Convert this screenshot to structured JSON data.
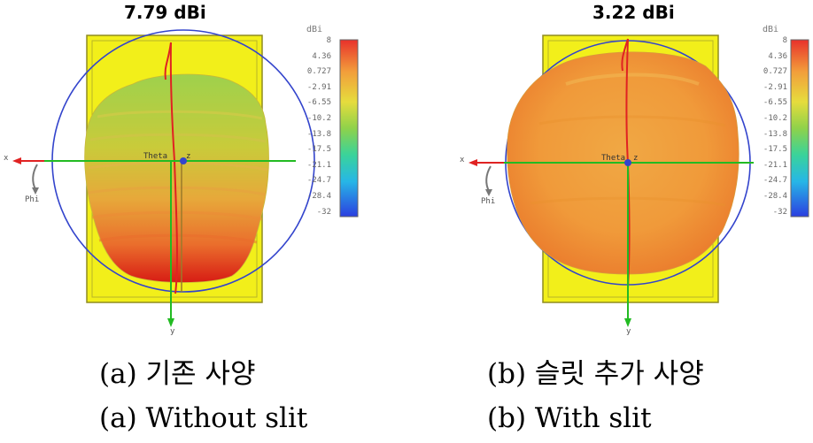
{
  "panels": [
    {
      "id": "a",
      "gain_title": "7.79 dBi",
      "colorbar": {
        "unit": "dBi",
        "ticks": [
          "8",
          "4.36",
          "0.727",
          "-2.91",
          "-6.55",
          "-10.2",
          "-13.8",
          "-17.5",
          "-21.1",
          "-24.7",
          "-28.4",
          "-32"
        ]
      },
      "axis_labels": {
        "x": "x",
        "y": "y",
        "z": "z",
        "theta": "Theta",
        "phi": "Phi"
      },
      "caption_ko": "(a) 기존 사양",
      "caption_en": "(a) Without slit"
    },
    {
      "id": "b",
      "gain_title": "3.22 dBi",
      "colorbar": {
        "unit": "dBi",
        "ticks": [
          "8",
          "4.36",
          "0.727",
          "-2.91",
          "-6.55",
          "-10.2",
          "-13.8",
          "-17.5",
          "-21.1",
          "-24.7",
          "-28.4",
          "-32"
        ]
      },
      "axis_labels": {
        "x": "x",
        "y": "y",
        "z": "z",
        "theta": "Theta",
        "phi": "Phi"
      },
      "caption_ko": "(b) 슬릿 추가 사양",
      "caption_en": "(b) With slit"
    }
  ],
  "colors": {
    "substrate": "#f2ef1a",
    "substrate_edge": "#8f8c20",
    "blue_circle": "#3344cc",
    "red_axis": "#e02222",
    "green_axis": "#22bb22",
    "pattern_a_top": "#a9cf4a",
    "pattern_a_bottom": "#e23418",
    "pattern_b_main": "#f0a43a"
  }
}
